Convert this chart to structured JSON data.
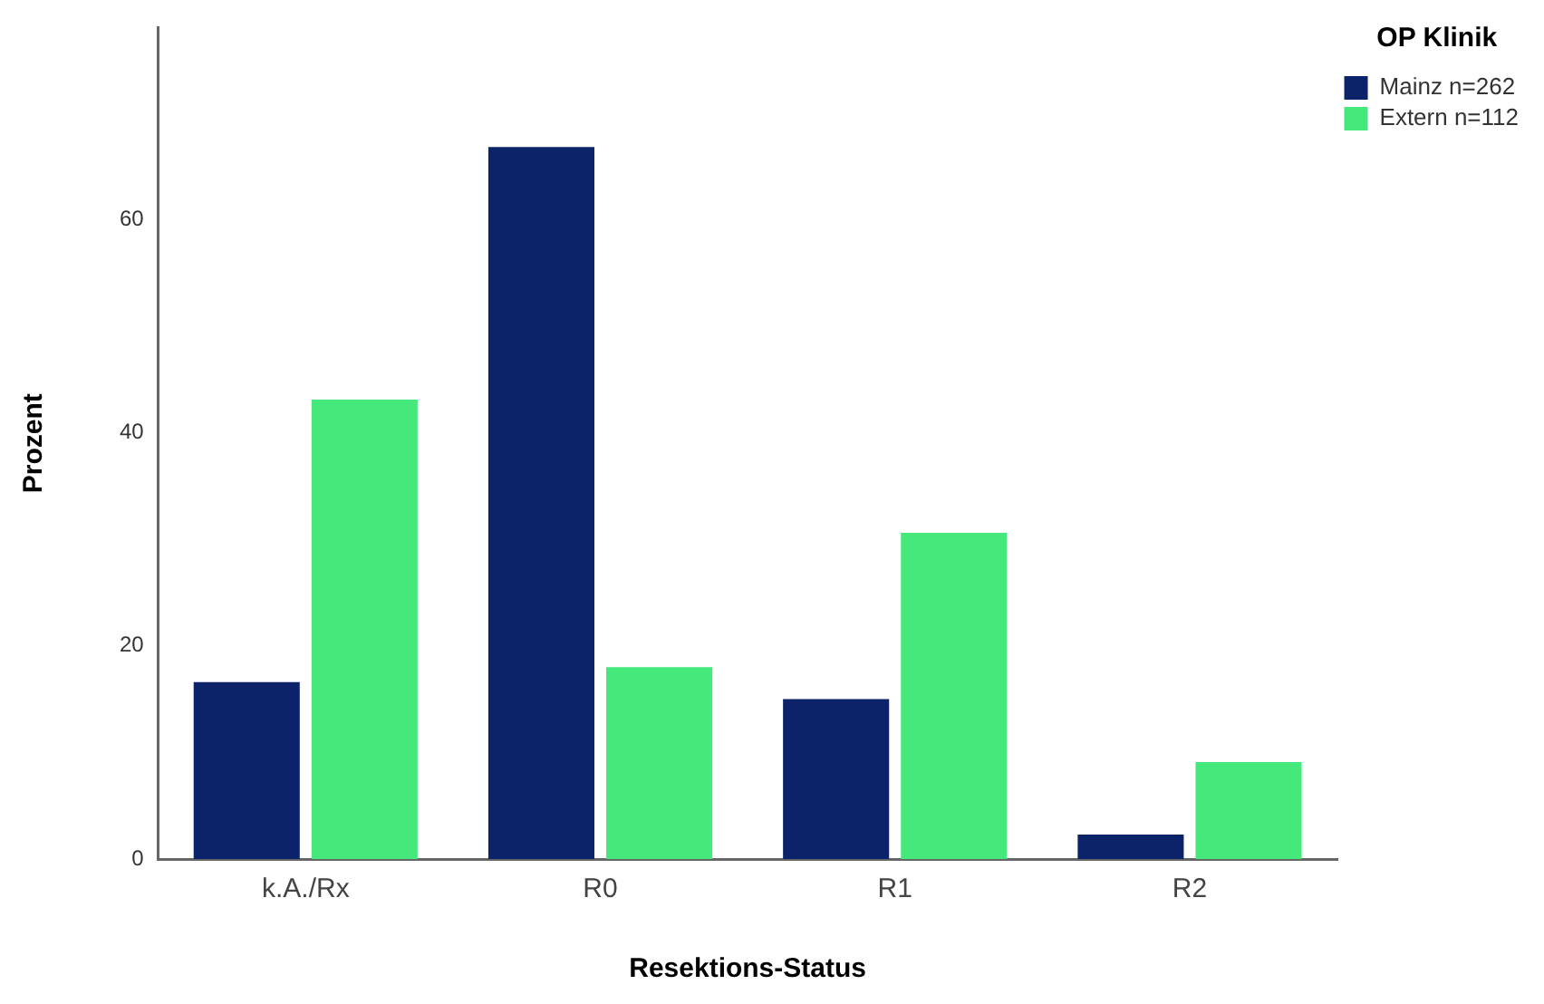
{
  "chart_data": {
    "type": "bar",
    "xlabel": "Resektions-Status",
    "ylabel": "Prozent",
    "legend_title": "OP Klinik",
    "categories": [
      "k.A./Rx",
      "R0",
      "R1",
      "R2"
    ],
    "series": [
      {
        "name": "Mainz n=262",
        "color": "#0c2369",
        "values": [
          16.6,
          66.8,
          15.0,
          2.3
        ]
      },
      {
        "name": "Extern n=112",
        "color": "#45e87b",
        "values": [
          43.1,
          18.0,
          30.6,
          9.1
        ]
      }
    ],
    "ylim": [
      0,
      78
    ],
    "yticks": [
      0,
      20,
      40,
      60
    ],
    "grid": false,
    "legend": "top right"
  }
}
